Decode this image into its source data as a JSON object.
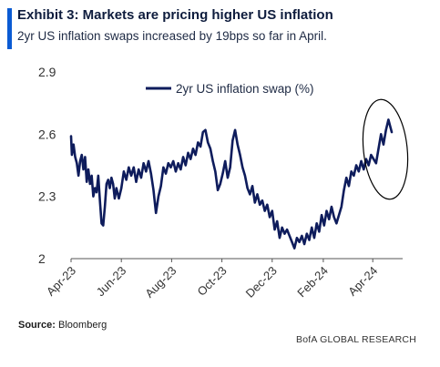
{
  "header": {
    "title": "Exhibit 3: Markets are pricing higher US inflation",
    "subtitle": "2yr US inflation swaps increased by 19bps so far in April."
  },
  "footer": {
    "source_label": "Source:",
    "source_value": "Bloomberg",
    "brand": "BofA GLOBAL RESEARCH"
  },
  "colors": {
    "line": "#0e1c5c",
    "accent": "#0b5bd3",
    "annotation": "#000000"
  },
  "chart_data": {
    "type": "line",
    "title": "Exhibit 3: Markets are pricing higher US inflation",
    "subtitle": "2yr US inflation swaps increased by 19bps so far in April.",
    "xlabel": "",
    "ylabel": "",
    "ylim": [
      2.0,
      2.9
    ],
    "y_ticks": [
      "2.9",
      "2.6",
      "2.3",
      "2"
    ],
    "x_ticks": [
      {
        "label": "Apr-23",
        "date": "2023-04-01"
      },
      {
        "label": "Jun-23",
        "date": "2023-06-01"
      },
      {
        "label": "Aug-23",
        "date": "2023-08-01"
      },
      {
        "label": "Oct-23",
        "date": "2023-10-01"
      },
      {
        "label": "Dec-23",
        "date": "2023-12-01"
      },
      {
        "label": "Feb-24",
        "date": "2024-02-01"
      },
      {
        "label": "Apr-24",
        "date": "2024-04-01"
      }
    ],
    "xlim": [
      "2023-04-01",
      "2024-04-24"
    ],
    "grid": false,
    "legend_position": "top-center",
    "annotation": "ellipse around the April-2024 rise",
    "series": [
      {
        "name": "2yr US inflation swap (%)",
        "color": "#0e1c5c",
        "points": [
          [
            "2023-04-01",
            2.59
          ],
          [
            "2023-04-02",
            2.5
          ],
          [
            "2023-04-04",
            2.55
          ],
          [
            "2023-04-06",
            2.49
          ],
          [
            "2023-04-08",
            2.46
          ],
          [
            "2023-04-10",
            2.4
          ],
          [
            "2023-04-12",
            2.47
          ],
          [
            "2023-04-14",
            2.5
          ],
          [
            "2023-04-16",
            2.43
          ],
          [
            "2023-04-18",
            2.49
          ],
          [
            "2023-04-20",
            2.37
          ],
          [
            "2023-04-22",
            2.43
          ],
          [
            "2023-04-24",
            2.36
          ],
          [
            "2023-04-26",
            2.4
          ],
          [
            "2023-04-28",
            2.3
          ],
          [
            "2023-04-30",
            2.34
          ],
          [
            "2023-05-02",
            2.32
          ],
          [
            "2023-05-04",
            2.4
          ],
          [
            "2023-05-06",
            2.28
          ],
          [
            "2023-05-08",
            2.17
          ],
          [
            "2023-05-10",
            2.16
          ],
          [
            "2023-05-12",
            2.25
          ],
          [
            "2023-05-14",
            2.36
          ],
          [
            "2023-05-16",
            2.38
          ],
          [
            "2023-05-18",
            2.34
          ],
          [
            "2023-05-20",
            2.39
          ],
          [
            "2023-05-22",
            2.36
          ],
          [
            "2023-05-24",
            2.29
          ],
          [
            "2023-05-26",
            2.34
          ],
          [
            "2023-05-29",
            2.29
          ],
          [
            "2023-06-01",
            2.34
          ],
          [
            "2023-06-04",
            2.42
          ],
          [
            "2023-06-07",
            2.38
          ],
          [
            "2023-06-10",
            2.44
          ],
          [
            "2023-06-13",
            2.4
          ],
          [
            "2023-06-16",
            2.44
          ],
          [
            "2023-06-19",
            2.37
          ],
          [
            "2023-06-22",
            2.43
          ],
          [
            "2023-06-25",
            2.39
          ],
          [
            "2023-06-28",
            2.46
          ],
          [
            "2023-07-01",
            2.42
          ],
          [
            "2023-07-04",
            2.47
          ],
          [
            "2023-07-07",
            2.41
          ],
          [
            "2023-07-10",
            2.33
          ],
          [
            "2023-07-13",
            2.22
          ],
          [
            "2023-07-16",
            2.3
          ],
          [
            "2023-07-19",
            2.35
          ],
          [
            "2023-07-22",
            2.44
          ],
          [
            "2023-07-25",
            2.41
          ],
          [
            "2023-07-28",
            2.46
          ],
          [
            "2023-07-31",
            2.44
          ],
          [
            "2023-08-03",
            2.47
          ],
          [
            "2023-08-06",
            2.42
          ],
          [
            "2023-08-09",
            2.46
          ],
          [
            "2023-08-12",
            2.43
          ],
          [
            "2023-08-15",
            2.49
          ],
          [
            "2023-08-18",
            2.45
          ],
          [
            "2023-08-21",
            2.51
          ],
          [
            "2023-08-24",
            2.48
          ],
          [
            "2023-08-27",
            2.53
          ],
          [
            "2023-08-30",
            2.5
          ],
          [
            "2023-09-02",
            2.56
          ],
          [
            "2023-09-05",
            2.54
          ],
          [
            "2023-09-08",
            2.61
          ],
          [
            "2023-09-11",
            2.62
          ],
          [
            "2023-09-14",
            2.56
          ],
          [
            "2023-09-17",
            2.53
          ],
          [
            "2023-09-20",
            2.47
          ],
          [
            "2023-09-23",
            2.42
          ],
          [
            "2023-09-26",
            2.33
          ],
          [
            "2023-09-29",
            2.36
          ],
          [
            "2023-10-02",
            2.41
          ],
          [
            "2023-10-05",
            2.47
          ],
          [
            "2023-10-08",
            2.39
          ],
          [
            "2023-10-11",
            2.44
          ],
          [
            "2023-10-14",
            2.57
          ],
          [
            "2023-10-17",
            2.62
          ],
          [
            "2023-10-20",
            2.55
          ],
          [
            "2023-10-23",
            2.5
          ],
          [
            "2023-10-26",
            2.44
          ],
          [
            "2023-10-29",
            2.4
          ],
          [
            "2023-11-01",
            2.34
          ],
          [
            "2023-11-04",
            2.31
          ],
          [
            "2023-11-07",
            2.35
          ],
          [
            "2023-11-10",
            2.27
          ],
          [
            "2023-11-13",
            2.31
          ],
          [
            "2023-11-16",
            2.26
          ],
          [
            "2023-11-19",
            2.28
          ],
          [
            "2023-11-22",
            2.23
          ],
          [
            "2023-11-25",
            2.26
          ],
          [
            "2023-11-28",
            2.2
          ],
          [
            "2023-12-01",
            2.23
          ],
          [
            "2023-12-04",
            2.14
          ],
          [
            "2023-12-07",
            2.18
          ],
          [
            "2023-12-10",
            2.1
          ],
          [
            "2023-12-13",
            2.15
          ],
          [
            "2023-12-16",
            2.12
          ],
          [
            "2023-12-19",
            2.14
          ],
          [
            "2023-12-22",
            2.11
          ],
          [
            "2023-12-25",
            2.08
          ],
          [
            "2023-12-28",
            2.05
          ],
          [
            "2023-12-31",
            2.1
          ],
          [
            "2024-01-03",
            2.08
          ],
          [
            "2024-01-06",
            2.11
          ],
          [
            "2024-01-09",
            2.07
          ],
          [
            "2024-01-12",
            2.12
          ],
          [
            "2024-01-15",
            2.09
          ],
          [
            "2024-01-18",
            2.15
          ],
          [
            "2024-01-21",
            2.1
          ],
          [
            "2024-01-24",
            2.17
          ],
          [
            "2024-01-27",
            2.13
          ],
          [
            "2024-01-30",
            2.21
          ],
          [
            "2024-02-02",
            2.16
          ],
          [
            "2024-02-05",
            2.23
          ],
          [
            "2024-02-08",
            2.19
          ],
          [
            "2024-02-11",
            2.25
          ],
          [
            "2024-02-14",
            2.2
          ],
          [
            "2024-02-17",
            2.17
          ],
          [
            "2024-02-20",
            2.21
          ],
          [
            "2024-02-23",
            2.25
          ],
          [
            "2024-02-26",
            2.33
          ],
          [
            "2024-02-29",
            2.39
          ],
          [
            "2024-03-03",
            2.35
          ],
          [
            "2024-03-06",
            2.42
          ],
          [
            "2024-03-09",
            2.4
          ],
          [
            "2024-03-12",
            2.45
          ],
          [
            "2024-03-15",
            2.42
          ],
          [
            "2024-03-18",
            2.47
          ],
          [
            "2024-03-21",
            2.43
          ],
          [
            "2024-03-24",
            2.48
          ],
          [
            "2024-03-27",
            2.45
          ],
          [
            "2024-03-30",
            2.5
          ],
          [
            "2024-04-02",
            2.48
          ],
          [
            "2024-04-05",
            2.46
          ],
          [
            "2024-04-08",
            2.53
          ],
          [
            "2024-04-11",
            2.6
          ],
          [
            "2024-04-14",
            2.55
          ],
          [
            "2024-04-17",
            2.62
          ],
          [
            "2024-04-20",
            2.67
          ],
          [
            "2024-04-22",
            2.64
          ],
          [
            "2024-04-24",
            2.61
          ]
        ]
      }
    ]
  }
}
